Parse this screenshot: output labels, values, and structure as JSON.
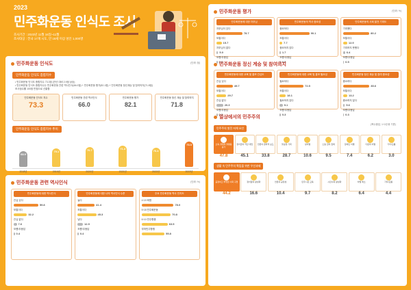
{
  "header": {
    "year": "2023",
    "title": "민주화운동 인식도 조사",
    "meta1": "조사기간 : 2023년 11월 16일~11월",
    "meta2": "조사대상 : 전국 17개 시도, 만 18세 이상 성인 1,000명"
  },
  "section1": {
    "title": "민주화운동 인식도",
    "unit": "(단위: 점)",
    "tag": "민주화운동 인식도 종합지수",
    "notes": [
      "• 민주화운동 인식도 종합지수 73.3점 (전년 대비 2.9점 상승)",
      "• 민주화운동 인식도 종합지수는 민주화운동 관련 역사인식(66.0점) + 민주화운동 평가(82.1점) + 민주화운동 정신계승 및 참여의지(71.8점)",
      "  조사점수를 100점 만점으로 산출함"
    ],
    "boxes": [
      {
        "label": "민주화운동 인식도 지수",
        "value": "73.3"
      },
      {
        "label": "민주화운동 관련 역사인식",
        "value": "66.0"
      },
      {
        "label": "민주화운동 평가",
        "value": "82.1"
      },
      {
        "label": "민주화운동 정신 계승 및 참여의지",
        "value": "71.8"
      }
    ],
    "trend_tag": "민주화운동 인식도 종합지수 추이",
    "trend": [
      {
        "year": "2018년",
        "value": "68.9"
      },
      {
        "year": "2019년",
        "value": "70.1"
      },
      {
        "year": "2020년",
        "value": "70.7"
      },
      {
        "year": "2021년",
        "value": "71.3"
      },
      {
        "year": "2022년",
        "value": "70.4"
      },
      {
        "year": "2023년",
        "value": "73.3"
      }
    ]
  },
  "section2": {
    "title": "민주화운동 관련 역사인식",
    "unit": "(단위: %)",
    "cards": [
      {
        "head": "민주화운동에 대한 역사인식",
        "rows": [
          {
            "label": "관심 있다",
            "value": "59.8",
            "pct": 59.8,
            "color": "o"
          },
          {
            "label": "보통이다",
            "value": "32.2",
            "pct": 32.2,
            "color": "y"
          },
          {
            "label": "관심 없다",
            "value": "7.6",
            "pct": 7.6,
            "color": "g"
          },
          {
            "label": "모름/무응답",
            "value": "0.4",
            "pct": 0.4,
            "color": "g"
          }
        ]
      },
      {
        "head": "민주화운동에 대한 나의 역사인식 수준",
        "rows": [
          {
            "label": "높다",
            "value": "41.4",
            "pct": 41.4,
            "color": "o"
          },
          {
            "label": "보통이다",
            "value": "45.3",
            "pct": 45.3,
            "color": "y"
          },
          {
            "label": "낮다",
            "value": "12.9",
            "pct": 12.9,
            "color": "g"
          },
          {
            "label": "모름/무응답",
            "value": "0.4",
            "pct": 0.4,
            "color": "g"
          }
        ]
      },
      {
        "head": "주요 민주화운동 역사 인지도",
        "rows": [
          {
            "label": "4·19 혁명",
            "value": "78.0",
            "pct": 78.0,
            "color": "o"
          },
          {
            "label": "5·18 민주화운동",
            "value": "70.8",
            "pct": 70.8,
            "color": "y"
          },
          {
            "label": "6·10 민주항쟁",
            "value": "63.5",
            "pct": 63.5,
            "color": "y"
          },
          {
            "label": "부마민주항쟁",
            "value": "55.8",
            "pct": 55.8,
            "color": "y"
          }
        ]
      }
    ]
  },
  "section3": {
    "title": "민주화운동 평가",
    "unit": "(단위: %)",
    "cards": [
      {
        "head": "민주화운동에 대한 자부심",
        "rows": [
          {
            "label": "자부심이 있다",
            "value": "78.7",
            "pct": 78.7,
            "color": "o"
          },
          {
            "label": "보통이다",
            "value": "15.7",
            "pct": 15.7,
            "color": "y"
          },
          {
            "label": "자부심이 없다",
            "value": "5.0",
            "pct": 5.0,
            "color": "g"
          },
          {
            "label": "모름/무응답",
            "value": "0.6",
            "pct": 0.6,
            "color": "g"
          }
        ]
      },
      {
        "head": "민주화운동의 역사 중요성",
        "rows": [
          {
            "label": "중요하다",
            "value": "90.1",
            "pct": 90.1,
            "color": "o"
          },
          {
            "label": "보통이다",
            "value": "7.7",
            "pct": 7.7,
            "color": "y"
          },
          {
            "label": "중요하지 않다",
            "value": "1.7",
            "pct": 1.7,
            "color": "g"
          },
          {
            "label": "모름/무응답",
            "value": "0.5",
            "pct": 0.5,
            "color": "g"
          }
        ]
      },
      {
        "head": "민주화운동의 사회 발전 기여도",
        "rows": [
          {
            "label": "기여했다",
            "value": "80.2",
            "pct": 80.2,
            "color": "o"
          },
          {
            "label": "보통이다",
            "value": "12.9",
            "pct": 12.9,
            "color": "y"
          },
          {
            "label": "기여하지 못했다",
            "value": "6.4",
            "pct": 6.4,
            "color": "g"
          },
          {
            "label": "모름/무응답",
            "value": "0.5",
            "pct": 0.5,
            "color": "g"
          }
        ]
      }
    ]
  },
  "section4": {
    "title": "민주화운동 정신 계승 및 참여의지",
    "unit": "(단위: %)",
    "cards": [
      {
        "head": "민주화운동에 대한 교육 및 홍보 관심도",
        "rows": [
          {
            "label": "관심 있다",
            "value": "49.7",
            "pct": 49.7,
            "color": "o"
          },
          {
            "label": "보통이다",
            "value": "29.7",
            "pct": 29.7,
            "color": "y"
          },
          {
            "label": "관심 없다",
            "value": "20.3",
            "pct": 20.3,
            "color": "g"
          },
          {
            "label": "모름/무응답",
            "value": "0.3",
            "pct": 0.3,
            "color": "g"
          }
        ]
      },
      {
        "head": "민주화운동에 대한 교육 및 홍보 필요성",
        "rows": [
          {
            "label": "필요하다",
            "value": "72.5",
            "pct": 72.5,
            "color": "o"
          },
          {
            "label": "보통이다",
            "value": "18.1",
            "pct": 18.1,
            "color": "y"
          },
          {
            "label": "필요하지 않다",
            "value": "9.1",
            "pct": 9.1,
            "color": "g"
          },
          {
            "label": "모름/무응답",
            "value": "0.3",
            "pct": 0.3,
            "color": "g"
          }
        ]
      },
      {
        "head": "민주화운동 정신 계승 및 참여 중요성",
        "rows": [
          {
            "label": "중요하다",
            "value": "80.6",
            "pct": 80.6,
            "color": "o"
          },
          {
            "label": "보통이다",
            "value": "13.2",
            "pct": 13.2,
            "color": "y"
          },
          {
            "label": "중요하지 않다",
            "value": "5.6",
            "pct": 5.6,
            "color": "g"
          },
          {
            "label": "모름/무응답",
            "value": "0.3",
            "pct": 0.3,
            "color": "g"
          }
        ]
      }
    ]
  },
  "section5": {
    "title": "일상에서의 민주주의",
    "unit": "(복수응답, 1+2순위 기준)",
    "tag1": "민주주의 발전 저해 요인",
    "items1": [
      {
        "label": "소득·경제적 불평등 증가",
        "value": "47.8"
      },
      {
        "label": "정치권의 극단 대립",
        "value": "45.1"
      },
      {
        "label": "언론의 편파적 보도",
        "value": "33.8"
      },
      {
        "label": "불공정 기회",
        "value": "28.7"
      },
      {
        "label": "성차별",
        "value": "10.6"
      },
      {
        "label": "노동 권리 침해",
        "value": "9.5"
      },
      {
        "label": "장애인 차별",
        "value": "7.4"
      },
      {
        "label": "다문화 차별",
        "value": "6.2"
      },
      {
        "label": "기타/모름",
        "value": "3.0"
      }
    ],
    "tag2": "생활 속 민주주의 확립을 위한 우선과제",
    "items2": [
      {
        "label": "공정하고 투명한 사회 구현",
        "value": "44.2"
      },
      {
        "label": "정치참여 활성화",
        "value": "16.6"
      },
      {
        "label": "언론의 공정성",
        "value": "10.4"
      },
      {
        "label": "민주시민 교육",
        "value": "9.7"
      },
      {
        "label": "시민사회 활성화",
        "value": "8.2"
      },
      {
        "label": "차별 해소",
        "value": "6.4"
      },
      {
        "label": "기타/모름",
        "value": "4.4"
      }
    ]
  }
}
